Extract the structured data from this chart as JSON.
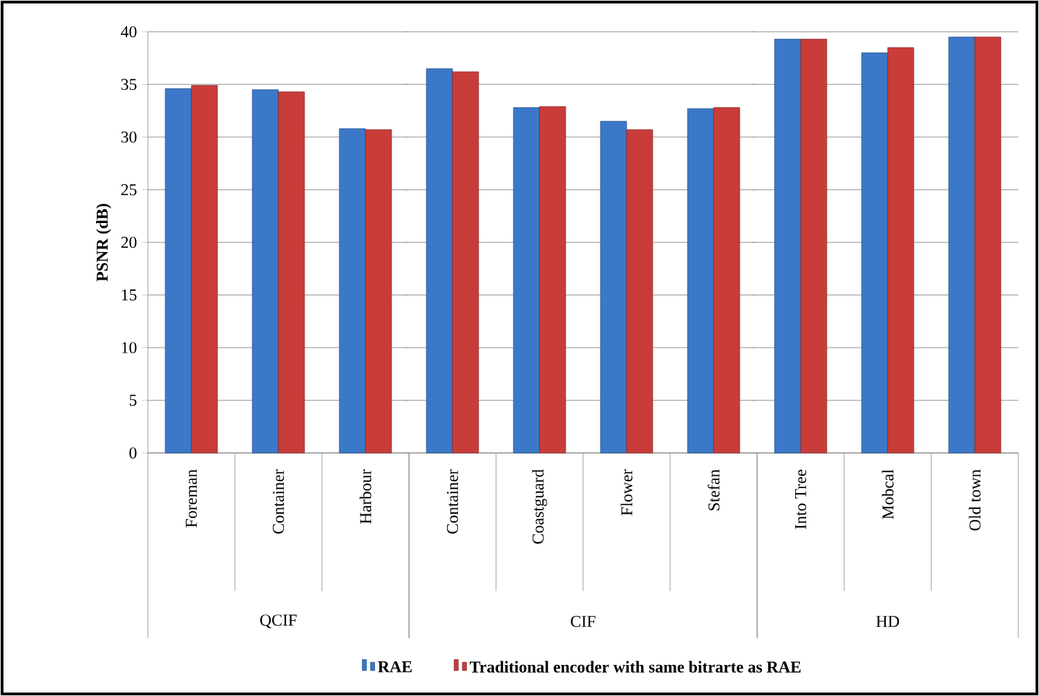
{
  "chart_data": [
    {
      "type": "bar",
      "ylabel": "PSNR (dB)",
      "xlabel": "QCIF",
      "categories": [
        "Foreman",
        "Container",
        "Harbour"
      ],
      "series": [
        {
          "name": "RAE",
          "color": "#3b78c8",
          "values": [
            34.6,
            34.5,
            30.8
          ]
        },
        {
          "name": "Traditional encoder with same bitrarte as RAE",
          "color": "#c83c3a",
          "values": [
            34.9,
            34.3,
            30.7
          ]
        }
      ],
      "ylim": [
        0,
        40
      ],
      "yticks": [
        0,
        5,
        10,
        15,
        20,
        25,
        30,
        35,
        40
      ],
      "grid": "y",
      "legend": "bottom"
    },
    {
      "type": "bar",
      "xlabel": "CIF",
      "categories": [
        "Container",
        "Coastguard",
        "Flower",
        "Stefan"
      ],
      "series": [
        {
          "color": "#3b78c8",
          "values": [
            36.5,
            32.8,
            31.5,
            32.7
          ]
        },
        {
          "color": "#c83c3a",
          "values": [
            36.2,
            32.9,
            30.7,
            32.8
          ]
        }
      ],
      "ylim": [
        0,
        40
      ],
      "yticks": [
        0,
        5,
        10,
        15,
        20,
        25,
        30,
        35,
        40
      ],
      "grid": "y",
      "tick_labels": "x"
    },
    {
      "type": "bar",
      "xlabel": "HD",
      "categories": [
        "Into Tree",
        "Mobcal",
        "Old town"
      ],
      "series": [
        {
          "color": "#3b78c8",
          "values": [
            39.3,
            38.0,
            39.5
          ]
        },
        {
          "color": "#c83c3a",
          "values": [
            39.3,
            38.5,
            39.5
          ]
        }
      ],
      "ylim": [
        0,
        40
      ],
      "yticks": [
        0,
        5,
        10,
        15,
        20,
        25,
        30,
        35,
        40
      ],
      "grid": "y",
      "tick_labels": "x"
    }
  ]
}
